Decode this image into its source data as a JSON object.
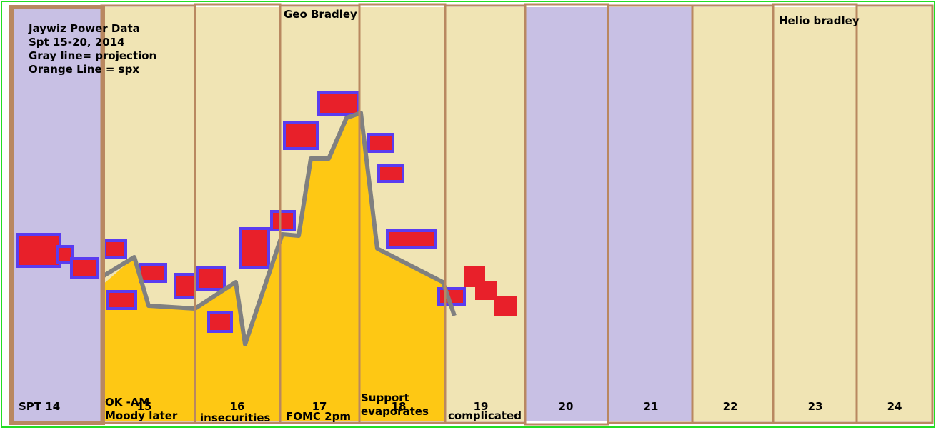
{
  "header": {
    "lines": [
      "Jaywiz Power Data",
      "Spt 15-20, 2014",
      "Gray line= projection",
      "Orange Line = spx"
    ]
  },
  "top_labels": [
    "Geo Bradley",
    "Helio bradley"
  ],
  "days": [
    "SPT 14",
    "15",
    "16",
    "17",
    "18",
    "19",
    "20",
    "21",
    "22",
    "23",
    "24"
  ],
  "notes": [
    "OK -AM",
    "Moody later",
    "insecurities",
    "FOMC 2pm",
    "Support",
    "evaporates",
    "complicated"
  ]
}
